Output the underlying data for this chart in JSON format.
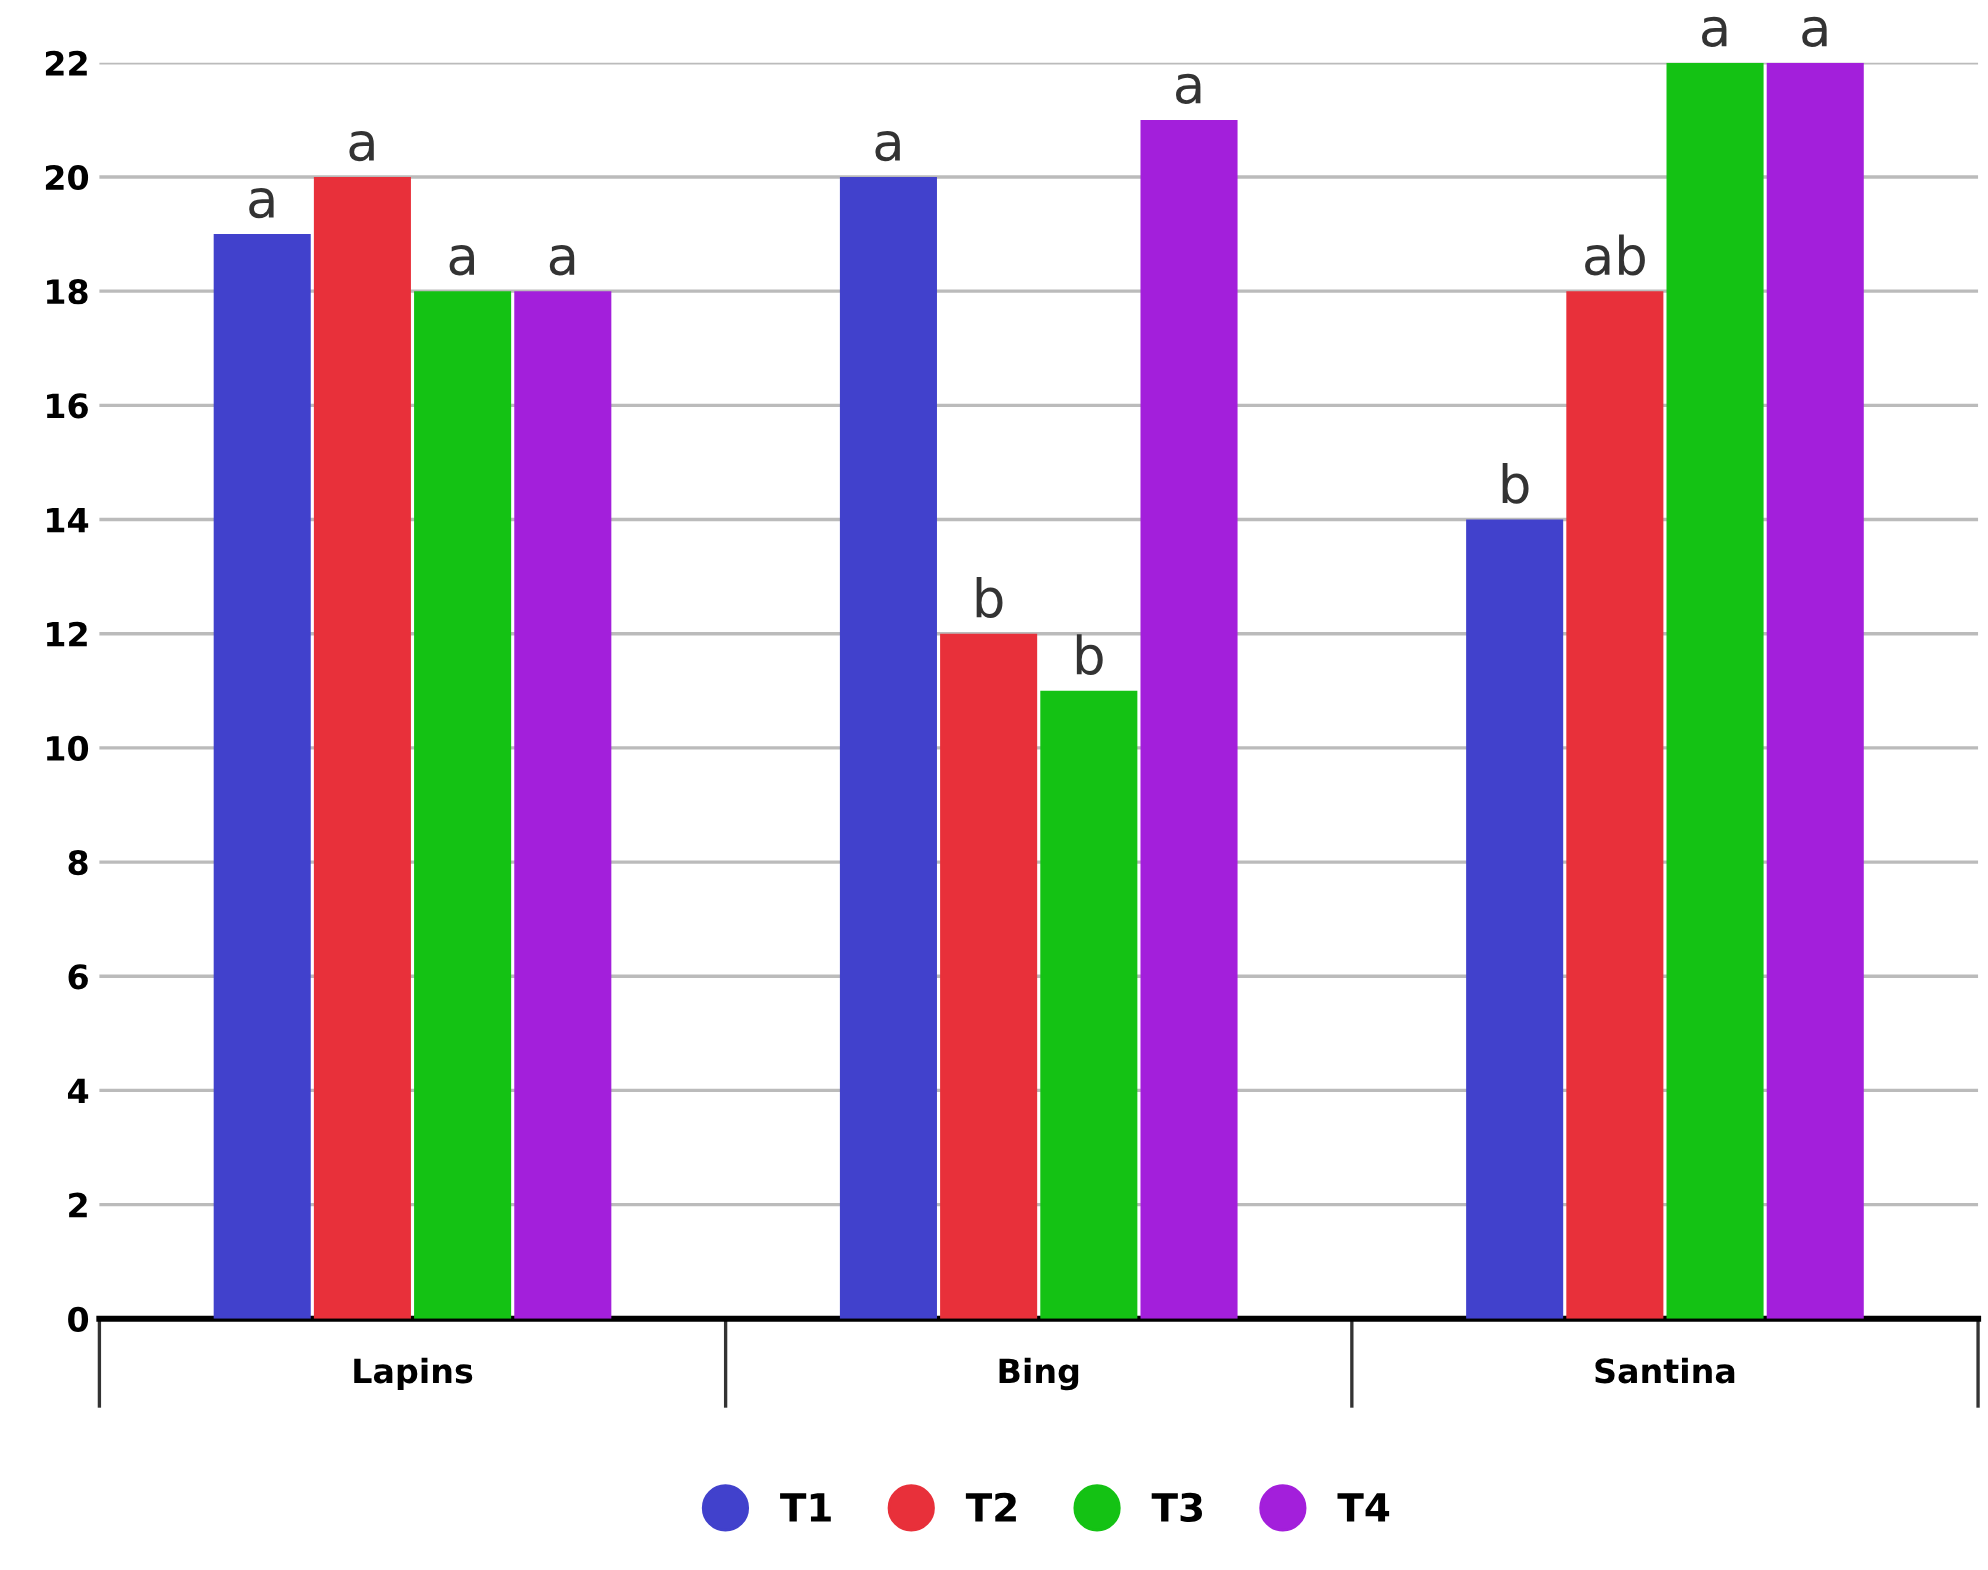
{
  "chart_data": {
    "type": "bar",
    "categories": [
      "Lapins",
      "Bing",
      "Santina"
    ],
    "series": [
      {
        "name": "T1",
        "color": "#4141cc",
        "values": [
          19,
          20,
          14
        ],
        "value_labels": [
          "a",
          "a",
          "b"
        ]
      },
      {
        "name": "T2",
        "color": "#e8303a",
        "values": [
          20,
          12,
          18
        ],
        "value_labels": [
          "a",
          "b",
          "ab"
        ]
      },
      {
        "name": "T3",
        "color": "#14c214",
        "values": [
          18,
          11,
          22
        ],
        "value_labels": [
          "a",
          "b",
          "a"
        ]
      },
      {
        "name": "T4",
        "color": "#a31fdb",
        "values": [
          18,
          21,
          22
        ],
        "value_labels": [
          "a",
          "a",
          "a"
        ]
      }
    ],
    "ylim": [
      0,
      22
    ],
    "yticks": [
      0,
      2,
      4,
      6,
      8,
      10,
      12,
      14,
      16,
      18,
      20,
      22
    ],
    "grid": "y",
    "legend": "bottom"
  }
}
